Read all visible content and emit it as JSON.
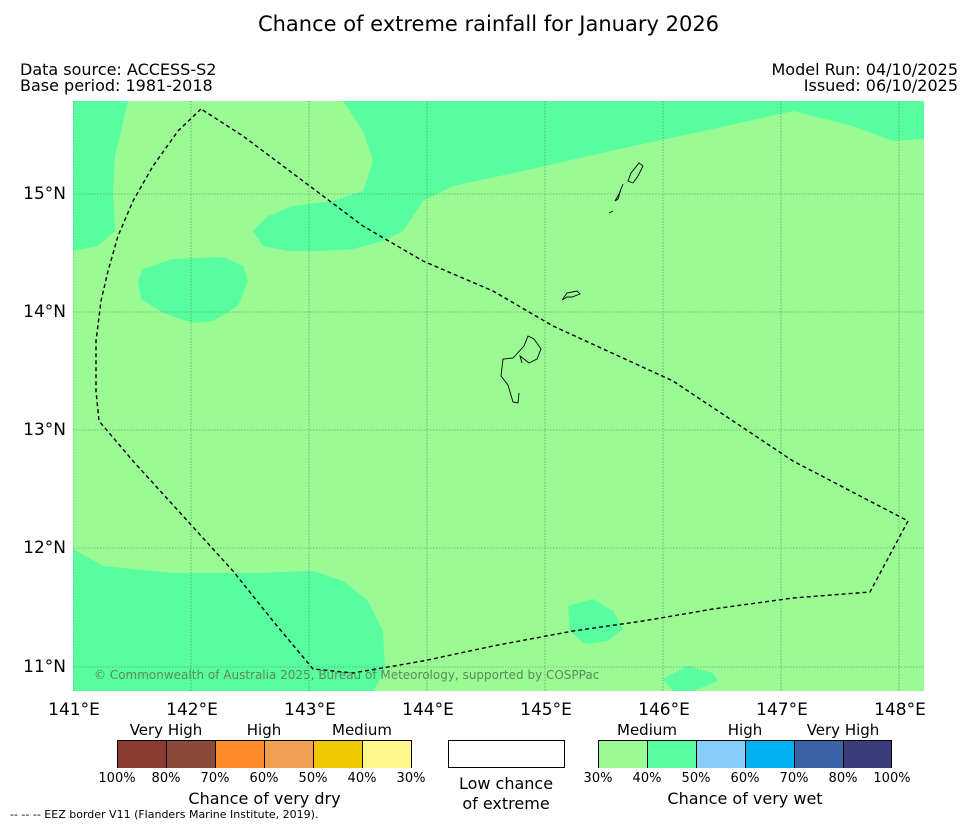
{
  "title": "Chance of extreme rainfall for January 2026",
  "data_source": "Data source: ACCESS-S2",
  "base_period": "Base period: 1981-2018",
  "model_run": "Model Run: 04/10/2025",
  "issued": "Issued: 06/10/2025",
  "map": {
    "lat_labels": [
      "15°N",
      "14°N",
      "13°N",
      "12°N",
      "11°N"
    ],
    "lon_labels": [
      "141°E",
      "142°E",
      "143°E",
      "144°E",
      "145°E",
      "146°E",
      "147°E",
      "148°E"
    ],
    "copyright": "© Commonwealth of Australia 2025, Bureau of Meteorology, supported by COSPPac",
    "colors": {
      "base": "#9afb95",
      "patch": "#58fda0",
      "gridline": "#4a8a4a"
    }
  },
  "dry_scale": {
    "headers": [
      "Very High",
      "High",
      "Medium"
    ],
    "ticks": [
      "100%",
      "80%",
      "70%",
      "60%",
      "50%",
      "40%",
      "30%"
    ],
    "colors": [
      "#8c3a32",
      "#8c4a3a",
      "#ff8a2a",
      "#f0a050",
      "#f0c800",
      "#fff78a"
    ],
    "title": "Chance of very dry"
  },
  "low_chance": {
    "line1": "Low chance",
    "line2": "of extreme"
  },
  "wet_scale": {
    "headers": [
      "Medium",
      "High",
      "Very High"
    ],
    "ticks": [
      "30%",
      "40%",
      "50%",
      "60%",
      "70%",
      "80%",
      "100%"
    ],
    "colors": [
      "#9afb95",
      "#58fda0",
      "#87cefa",
      "#00b0f0",
      "#3a64a8",
      "#3c3c7a"
    ],
    "title": "Chance of very wet"
  },
  "footnote": "-- -- -- EEZ border V11 (Flanders Marine Institute, 2019)."
}
